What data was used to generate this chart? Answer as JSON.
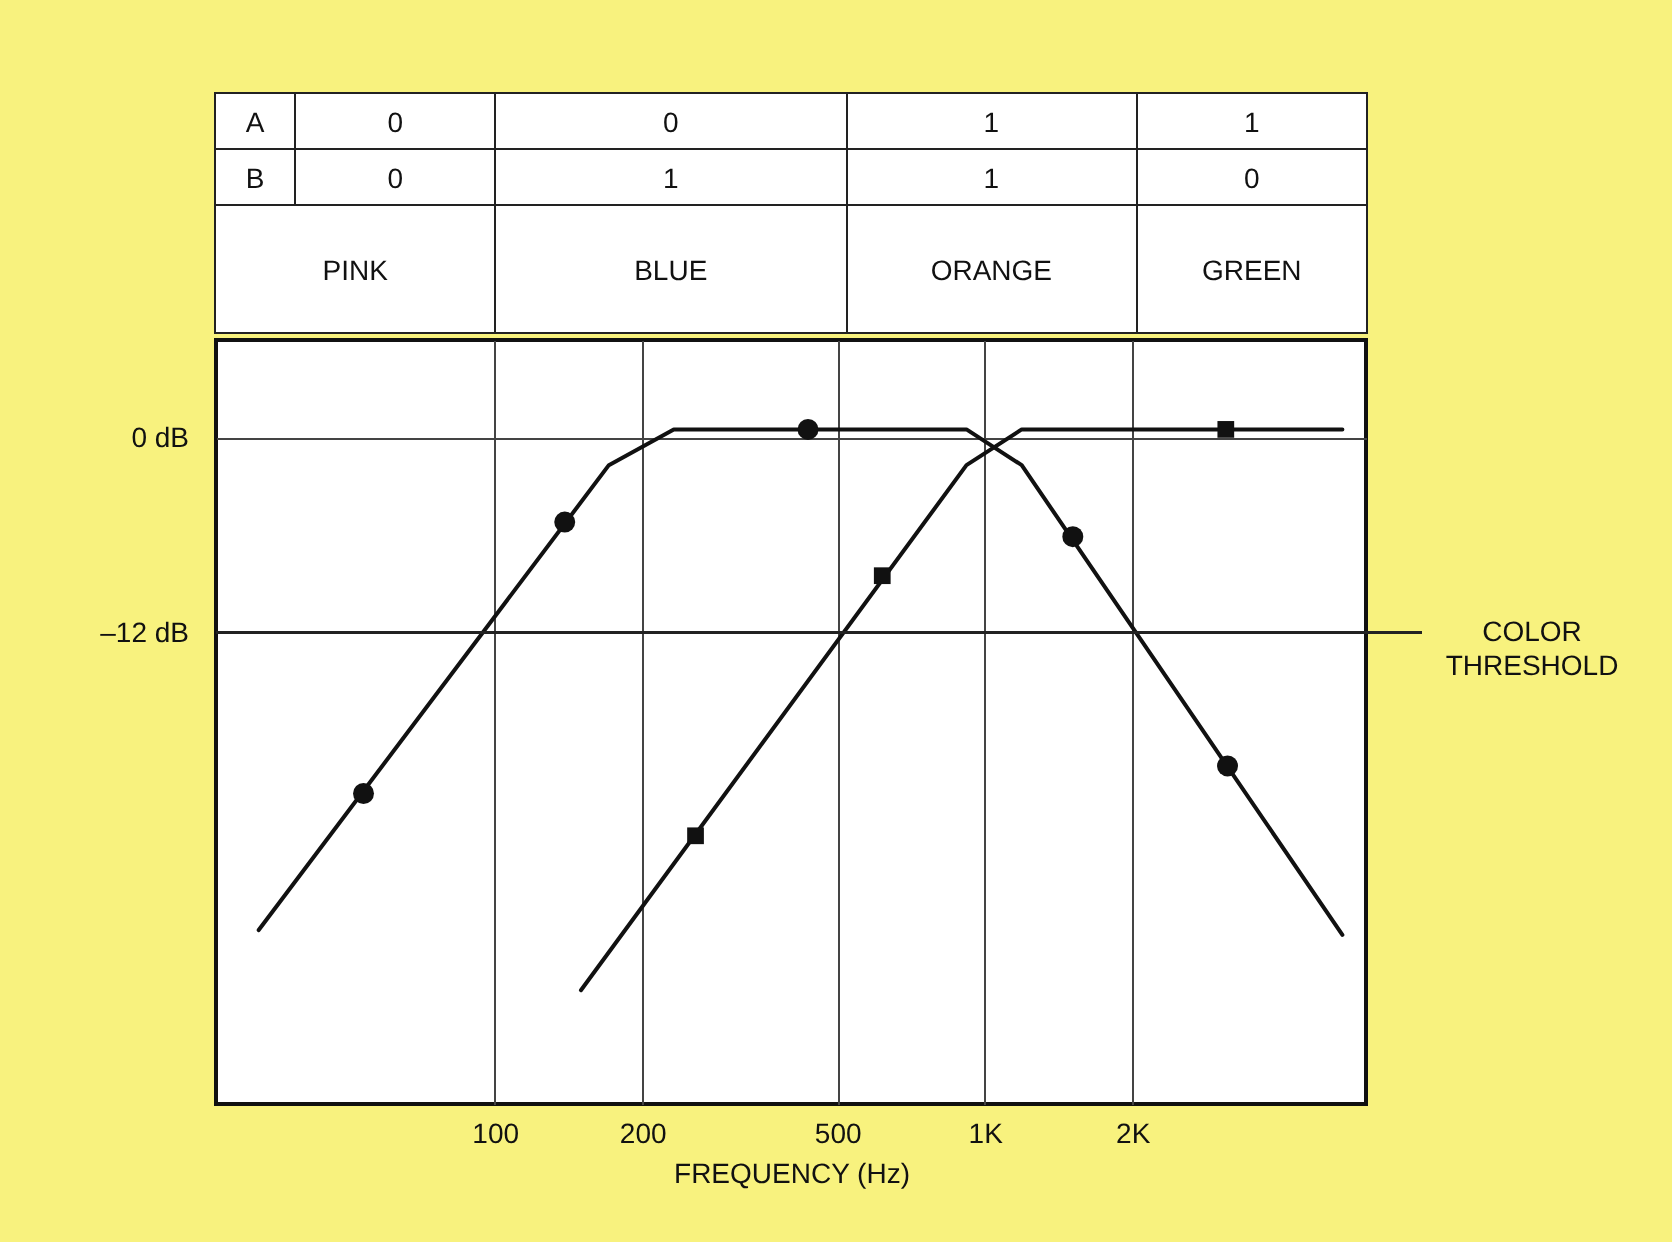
{
  "chart_data": {
    "type": "line",
    "xlabel": "FREQUENCY (Hz)",
    "log": "x",
    "xlim": [
      27,
      6000
    ],
    "xticks": [
      100,
      200,
      500,
      {
        "value": 1000,
        "label": "1K"
      },
      {
        "value": 2000,
        "label": "2K"
      }
    ],
    "ylim": [
      -41,
      6
    ],
    "yticks": [
      {
        "value": 0,
        "label": "0 dB"
      },
      {
        "value": -12,
        "label": "–12 dB"
      }
    ],
    "grid": true,
    "annotations": [
      "A",
      "0",
      "0",
      "1",
      "1",
      "B",
      "0",
      "1",
      "1",
      "0",
      "PINK",
      "BLUE",
      "ORANGE",
      "GREEN"
    ],
    "ref_lines": [
      {
        "axis": "y",
        "value": -12,
        "label": "COLOR THRESHOLD",
        "color": "#222222"
      }
    ],
    "series": [
      {
        "color": "#111111",
        "x": [
          33,
          171,
          232,
          918,
          1190,
          5370
        ],
        "values": [
          -30.3,
          -1.7,
          0.5,
          0.5,
          -1.7,
          -30.6
        ]
      },
      {
        "color": "#111111",
        "x": [
          150,
          918,
          1190,
          5370
        ],
        "values": [
          -34,
          -1.7,
          0.5,
          0.5
        ]
      },
      {
        "type": "scatter",
        "marker": "circle",
        "color": "#111111",
        "x": [
          54,
          139,
          436,
          1513,
          3130
        ],
        "values": [
          -21.9,
          -5.2,
          0.5,
          -6.1,
          -20.2
        ]
      },
      {
        "type": "scatter",
        "marker": "square",
        "color": "#111111",
        "x": [
          257,
          618,
          3105
        ],
        "values": [
          -24.5,
          -8.5,
          0.5
        ]
      }
    ]
  }
}
